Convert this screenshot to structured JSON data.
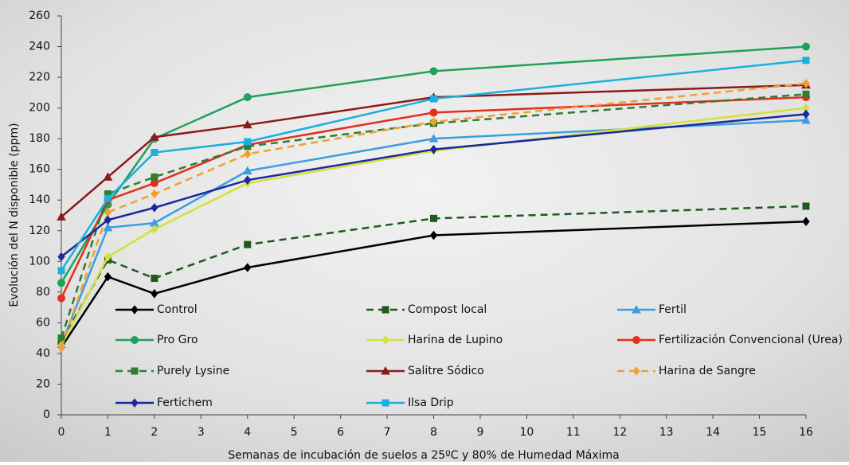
{
  "chart_data": {
    "type": "line",
    "x_label": "Semanas de incubación de suelos a 25ºC y 80% de Humedad Máxima",
    "y_label": "Evolución del N disponible (ppm)",
    "x": [
      0,
      1,
      2,
      4,
      8,
      16
    ],
    "xlim": [
      0,
      16
    ],
    "xticks": [
      0,
      1,
      2,
      3,
      4,
      5,
      6,
      7,
      8,
      9,
      10,
      11,
      12,
      13,
      14,
      15,
      16
    ],
    "ylim": [
      0,
      260
    ],
    "yticks": [
      0,
      20,
      40,
      60,
      80,
      100,
      120,
      140,
      160,
      180,
      200,
      220,
      240,
      260
    ],
    "series": [
      {
        "name": "Control",
        "color": "#000000",
        "marker": "diamond",
        "dashed": false,
        "values": [
          44,
          90,
          79,
          96,
          117,
          126
        ]
      },
      {
        "name": "Compost local",
        "color": "#1e5a1e",
        "marker": "square",
        "dashed": true,
        "values": [
          48,
          101,
          89,
          111,
          128,
          136
        ]
      },
      {
        "name": "Fertil",
        "color": "#3a9ee0",
        "marker": "triangle",
        "dashed": false,
        "values": [
          46,
          122,
          125,
          159,
          180,
          192
        ]
      },
      {
        "name": "Pro Gro",
        "color": "#1fa15a",
        "marker": "circle",
        "dashed": false,
        "values": [
          86,
          137,
          180,
          207,
          224,
          240
        ]
      },
      {
        "name": "Harina de Lupino",
        "color": "#d6e03a",
        "marker": "diamond",
        "dashed": false,
        "values": [
          45,
          103,
          121,
          151,
          172,
          200
        ]
      },
      {
        "name": "Fertilización Convencional (Urea)",
        "color": "#e0301e",
        "marker": "circle",
        "dashed": false,
        "values": [
          76,
          140,
          151,
          176,
          197,
          207
        ]
      },
      {
        "name": "Purely Lysine",
        "color": "#2e7d32",
        "marker": "square",
        "dashed": true,
        "values": [
          50,
          144,
          155,
          175,
          190,
          209
        ]
      },
      {
        "name": "Salitre Sódico",
        "color": "#8b1a1a",
        "marker": "triangle",
        "dashed": false,
        "values": [
          129,
          155,
          181,
          189,
          207,
          215
        ]
      },
      {
        "name": "Harina de Sangre",
        "color": "#f0a030",
        "marker": "diamond",
        "dashed": true,
        "values": [
          44,
          132,
          144,
          170,
          191,
          216
        ]
      },
      {
        "name": "Fertichem",
        "color": "#1a2a9e",
        "marker": "diamond",
        "dashed": false,
        "values": [
          103,
          127,
          135,
          153,
          173,
          196
        ]
      },
      {
        "name": "Ilsa Drip",
        "color": "#1ab0e0",
        "marker": "square",
        "dashed": false,
        "values": [
          94,
          141,
          171,
          178,
          206,
          231
        ]
      }
    ]
  }
}
